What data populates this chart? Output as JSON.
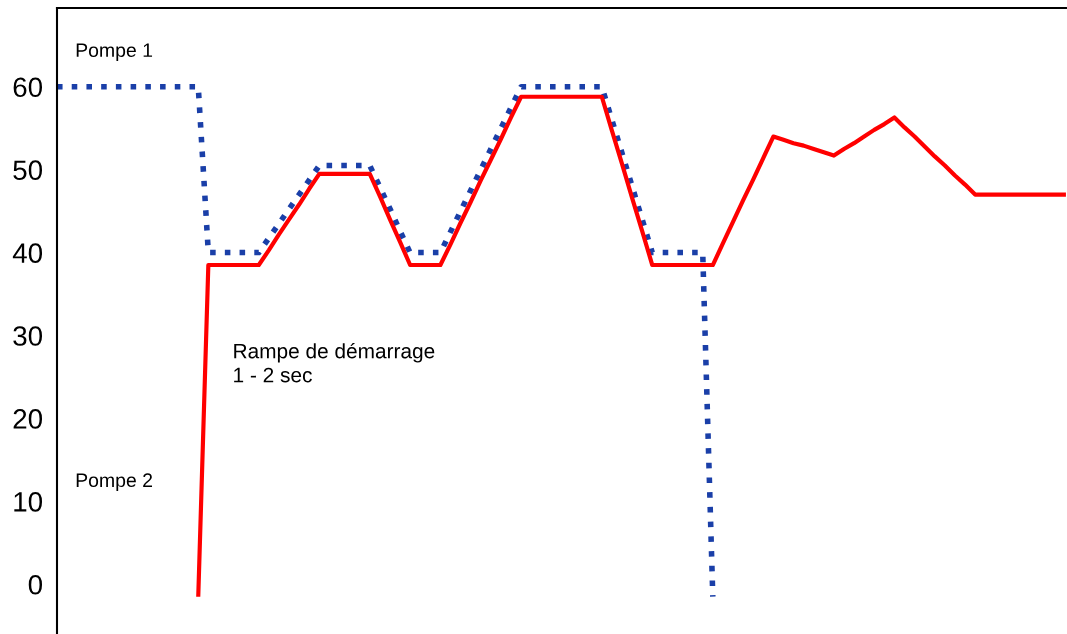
{
  "chart_data": {
    "type": "line",
    "ylim": [
      -6,
      69.5
    ],
    "yticks": [
      0,
      10,
      20,
      30,
      40,
      50,
      60
    ],
    "tick_labels": "y",
    "grid": false,
    "legend": false,
    "categories": [
      null,
      null,
      null,
      null,
      null,
      null,
      null,
      null,
      null,
      null,
      null,
      null,
      null,
      null,
      null,
      null,
      null,
      null,
      null,
      null,
      null,
      null,
      null,
      null,
      null,
      null,
      null,
      null,
      null,
      null,
      null,
      null,
      null,
      null,
      null,
      null,
      null,
      null,
      null,
      null,
      null,
      null,
      null,
      null,
      null,
      null,
      null,
      null,
      null,
      null,
      null,
      null,
      null,
      null,
      null,
      null,
      null,
      null,
      null,
      null,
      null,
      null,
      null,
      null,
      null,
      null,
      null,
      null,
      null,
      null,
      null,
      null,
      null,
      null,
      null,
      null,
      null,
      null,
      null,
      null,
      null,
      null,
      null,
      null,
      null,
      null,
      null,
      null,
      null,
      null,
      null,
      null,
      null,
      null,
      null,
      null,
      null,
      null,
      null,
      null,
      null
    ],
    "series": [
      {
        "name": "Pompe 1",
        "color": "#1a3fa8",
        "line_style": "dotted",
        "values": [
          60,
          60,
          60,
          60,
          60,
          60,
          60,
          60,
          60,
          60,
          60,
          60,
          60,
          60,
          60,
          40,
          40,
          40,
          40,
          40,
          40,
          41.75,
          43.5,
          45.25,
          47,
          48.75,
          50.5,
          50.5,
          50.5,
          50.5,
          50.5,
          50.5,
          47.9,
          45.3,
          42.6,
          40,
          40,
          40,
          40,
          42.5,
          45,
          47.5,
          50,
          52.5,
          55,
          57.5,
          60,
          60,
          60,
          60,
          60,
          60,
          60,
          60,
          60,
          56,
          52,
          48,
          44,
          40,
          40,
          40,
          40,
          40,
          40,
          -1.5,
          null,
          null,
          null,
          null,
          null,
          null,
          null,
          null,
          null,
          null,
          null,
          null,
          null,
          null,
          null,
          null,
          null,
          null,
          null,
          null,
          null,
          null,
          null,
          null,
          null,
          null,
          null,
          null,
          null,
          null,
          null,
          null,
          null,
          null,
          null
        ]
      },
      {
        "name": "Pompe 2",
        "color": "#ff0000",
        "line_style": "solid",
        "values": [
          null,
          null,
          null,
          null,
          null,
          null,
          null,
          null,
          null,
          null,
          null,
          null,
          null,
          null,
          -1.5,
          38.5,
          38.5,
          38.5,
          38.5,
          38.5,
          38.5,
          40.3,
          42.2,
          44,
          45.8,
          47.7,
          49.5,
          49.5,
          49.5,
          49.5,
          49.5,
          49.5,
          46.8,
          44,
          41.3,
          38.5,
          38.5,
          38.5,
          38.5,
          41,
          43.6,
          46.1,
          48.7,
          51.2,
          53.7,
          56.3,
          58.8,
          58.8,
          58.8,
          58.8,
          58.8,
          58.8,
          58.8,
          58.8,
          58.8,
          54.7,
          50.7,
          46.6,
          42.6,
          38.5,
          38.5,
          38.5,
          38.5,
          38.5,
          38.5,
          38.5,
          41.1,
          43.7,
          46.3,
          48.8,
          51.4,
          54,
          53.6,
          53.2,
          52.9,
          52.5,
          52.1,
          51.7,
          52.5,
          53.2,
          54,
          54.8,
          55.5,
          56.3,
          55.1,
          54,
          52.8,
          51.6,
          50.5,
          49.3,
          48.2,
          47,
          47,
          47,
          47,
          47,
          47,
          47,
          47,
          47,
          47
        ]
      }
    ],
    "annotations": [
      "Rampe de démarrage\n1 - 2 sec"
    ]
  }
}
